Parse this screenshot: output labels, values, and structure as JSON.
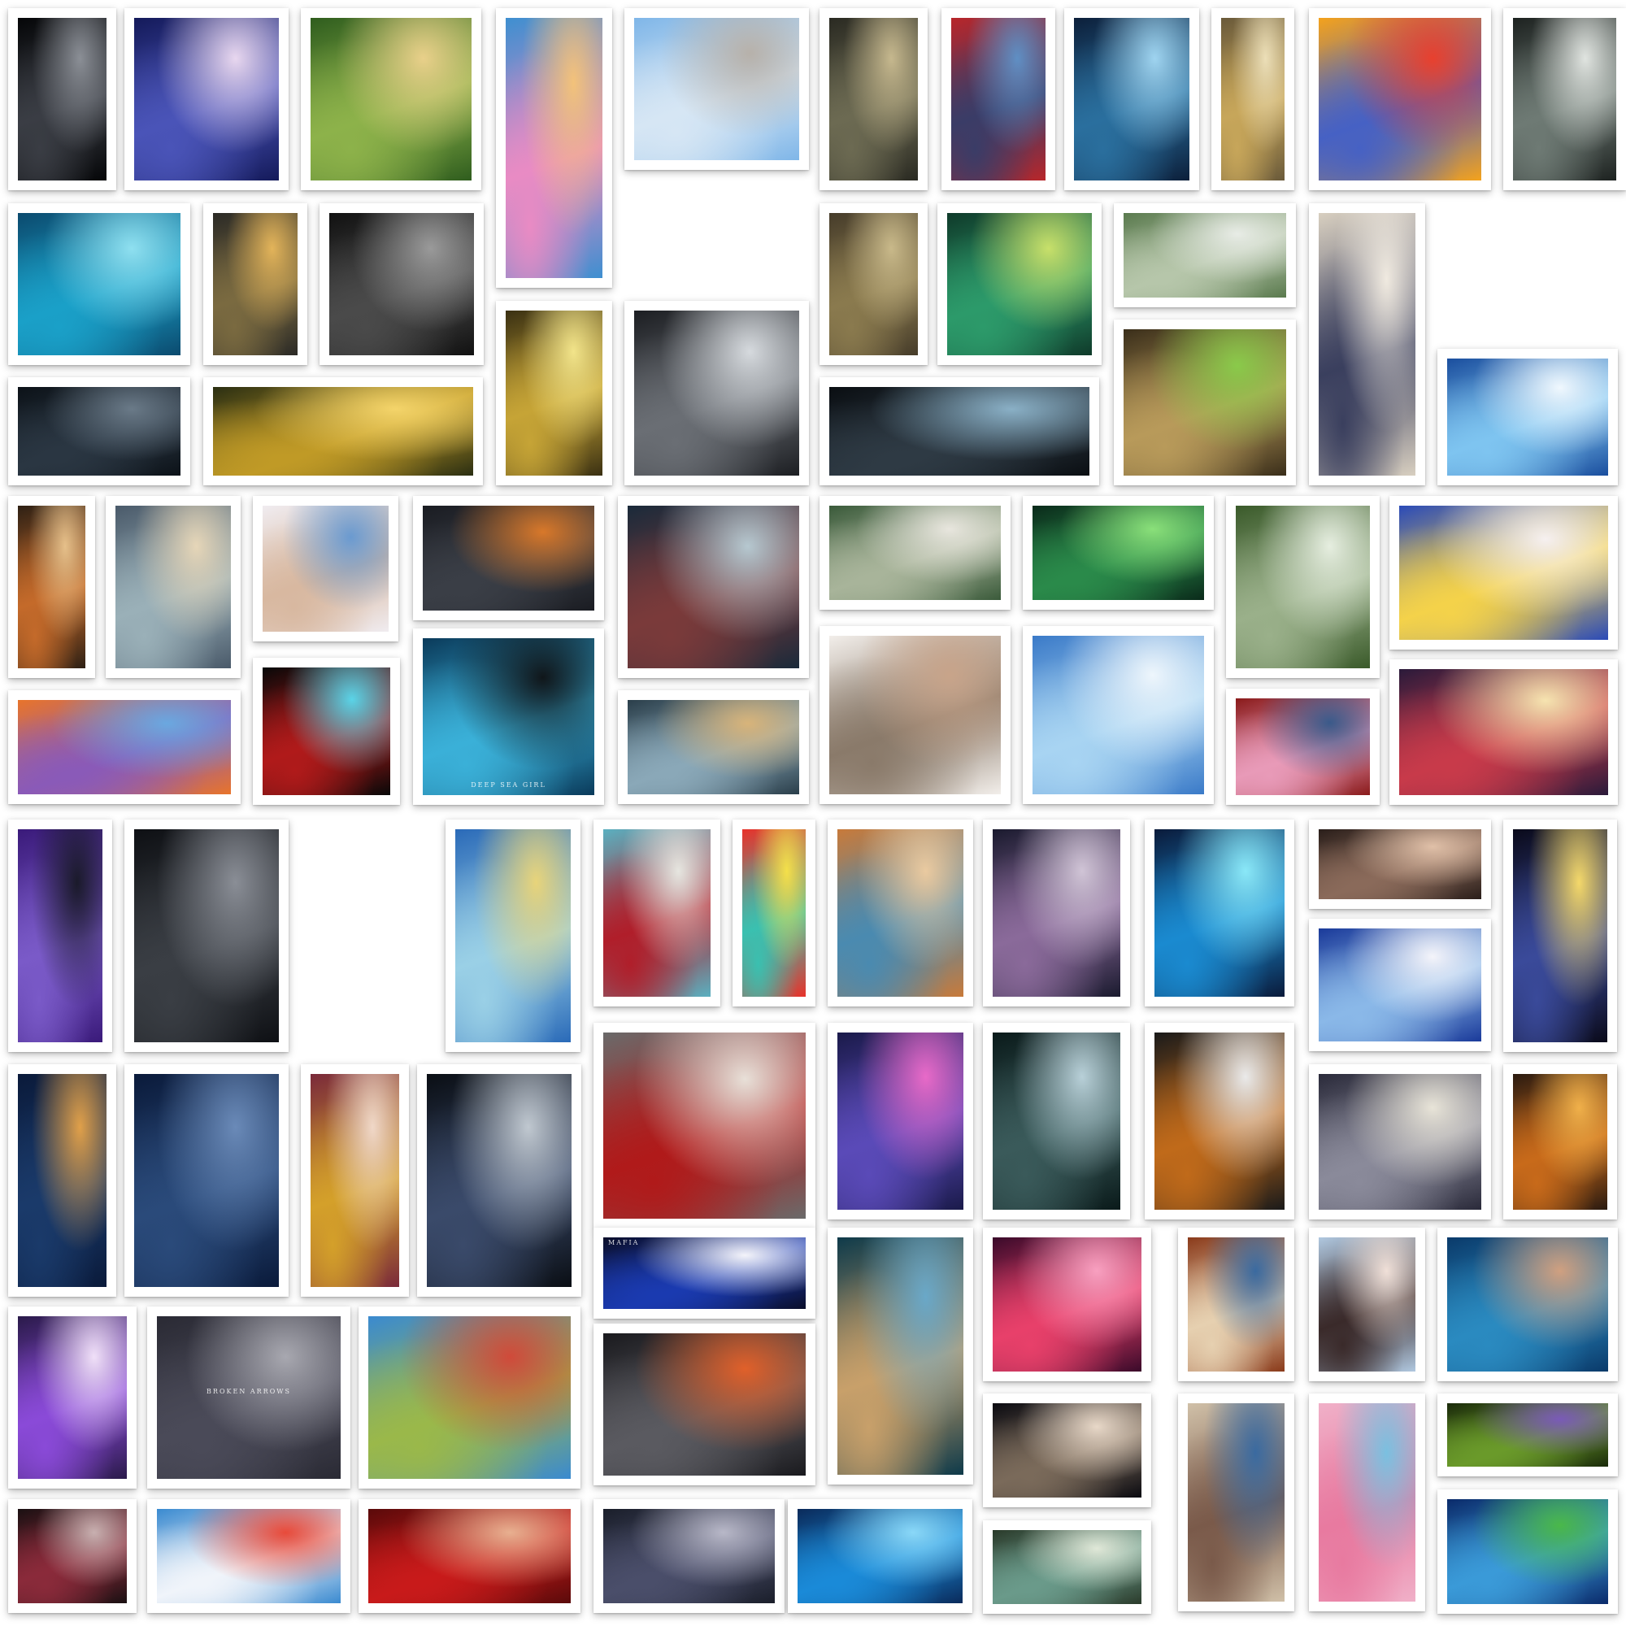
{
  "collage": {
    "background": "#ffffff",
    "frame_color": "#ffffff",
    "photos": [
      {
        "id": "p1",
        "colors": [
          "#050608",
          "#3a3d44",
          "#8b8f96"
        ],
        "caption": ""
      },
      {
        "id": "p2",
        "colors": [
          "#141a5a",
          "#4a54b8",
          "#e8d7ef"
        ],
        "caption": ""
      },
      {
        "id": "p3",
        "colors": [
          "#2f5d1e",
          "#8db24a",
          "#e9d08a"
        ],
        "caption": ""
      },
      {
        "id": "p4",
        "colors": [
          "#3e8fd0",
          "#e98bc4",
          "#f3c27a"
        ],
        "caption": ""
      },
      {
        "id": "p5",
        "colors": [
          "#7fb6e8",
          "#d6e6f4",
          "#b7b1aa"
        ],
        "caption": ""
      },
      {
        "id": "p6",
        "colors": [
          "#2a2a22",
          "#6c6a52",
          "#c6b88e"
        ],
        "caption": ""
      },
      {
        "id": "p7",
        "colors": [
          "#b8262a",
          "#3a3c67",
          "#5f8fc4"
        ],
        "caption": ""
      },
      {
        "id": "p8",
        "colors": [
          "#0c1f3a",
          "#2a6f9e",
          "#9fd4f0"
        ],
        "caption": ""
      },
      {
        "id": "p9",
        "colors": [
          "#6a5a3a",
          "#c7a65a",
          "#ecdfb8"
        ],
        "caption": ""
      },
      {
        "id": "p10",
        "colors": [
          "#f4a21c",
          "#4661c4",
          "#e8402e"
        ],
        "caption": ""
      },
      {
        "id": "p11",
        "colors": [
          "#1d2220",
          "#6e7a74",
          "#e0e4e0"
        ],
        "caption": ""
      },
      {
        "id": "p12",
        "colors": [
          "#0b4a6e",
          "#1aa0c8",
          "#8fe0f0"
        ],
        "caption": ""
      },
      {
        "id": "p13",
        "colors": [
          "#2b2a26",
          "#7a6a40",
          "#e3b45a"
        ],
        "caption": ""
      },
      {
        "id": "p14",
        "colors": [
          "#111111",
          "#4a4a4a",
          "#9a9a9a"
        ],
        "caption": ""
      },
      {
        "id": "p15",
        "colors": [
          "#463c2a",
          "#8a7a4e",
          "#c9b98a"
        ],
        "caption": ""
      },
      {
        "id": "p16",
        "colors": [
          "#0f3a2a",
          "#2c9a6a",
          "#c8e06a"
        ],
        "caption": ""
      },
      {
        "id": "p17",
        "colors": [
          "#5a7a4e",
          "#b6c6aa",
          "#e8ece6"
        ],
        "caption": ""
      },
      {
        "id": "p18",
        "colors": [
          "#d8cfc0",
          "#3a3f5e",
          "#f0eae0"
        ],
        "caption": ""
      },
      {
        "id": "p19",
        "colors": [
          "#0c1218",
          "#2a3642",
          "#6a7a88"
        ],
        "caption": ""
      },
      {
        "id": "p20",
        "colors": [
          "#2a2e12",
          "#c09a26",
          "#f4d46a"
        ],
        "caption": ""
      },
      {
        "id": "p21",
        "colors": [
          "#3a3012",
          "#c6a436",
          "#f2e48a"
        ],
        "caption": ""
      },
      {
        "id": "p22",
        "colors": [
          "#1c1e22",
          "#6a6e74",
          "#d6dade"
        ],
        "caption": ""
      },
      {
        "id": "p23",
        "colors": [
          "#0a0e12",
          "#2e3a44",
          "#8ab0c6"
        ],
        "caption": ""
      },
      {
        "id": "p24",
        "colors": [
          "#3a2e1a",
          "#b89a5a",
          "#8aca4a"
        ],
        "caption": ""
      },
      {
        "id": "p25",
        "colors": [
          "#1a4e9e",
          "#7ec4f0",
          "#f0f8fe"
        ],
        "caption": ""
      },
      {
        "id": "p26",
        "colors": [
          "#2e2014",
          "#c46a2a",
          "#e6c08a"
        ],
        "caption": ""
      },
      {
        "id": "p27",
        "colors": [
          "#4a5a6a",
          "#9ab0b8",
          "#e6d6b8"
        ],
        "caption": ""
      },
      {
        "id": "p28",
        "colors": [
          "#f0ecf0",
          "#d8b8a0",
          "#6a9ad0"
        ],
        "caption": ""
      },
      {
        "id": "p29",
        "colors": [
          "#1a1c22",
          "#3a3e46",
          "#d8782a"
        ],
        "caption": ""
      },
      {
        "id": "p30",
        "colors": [
          "#1a2a3a",
          "#7a3a3a",
          "#b6c8d0"
        ],
        "caption": ""
      },
      {
        "id": "p31",
        "colors": [
          "#3a5a3a",
          "#a8b49a",
          "#e8e6de"
        ],
        "caption": ""
      },
      {
        "id": "p32",
        "colors": [
          "#0a2a1a",
          "#2a8a4a",
          "#8ae07a"
        ],
        "caption": ""
      },
      {
        "id": "p33",
        "colors": [
          "#3a5a2a",
          "#9ab08a",
          "#e6eee0"
        ],
        "caption": ""
      },
      {
        "id": "p34",
        "colors": [
          "#2a4ab8",
          "#f4d24a",
          "#f6f0f0"
        ],
        "caption": ""
      },
      {
        "id": "p35",
        "colors": [
          "#e8742a",
          "#8a5ab8",
          "#6aa8e0"
        ],
        "caption": ""
      },
      {
        "id": "p36",
        "colors": [
          "#080808",
          "#b01a1a",
          "#5ad4e8"
        ],
        "caption": ""
      },
      {
        "id": "p37",
        "colors": [
          "#0a3a5a",
          "#3ab0d8",
          "#10161a"
        ],
        "caption": "DEEP SEA GIRL"
      },
      {
        "id": "p38",
        "colors": [
          "#2a3e4a",
          "#8aa8b8",
          "#d8b47a"
        ],
        "caption": ""
      },
      {
        "id": "p39",
        "colors": [
          "#f2eeea",
          "#8a7a6a",
          "#c8a48a"
        ],
        "caption": ""
      },
      {
        "id": "p40",
        "colors": [
          "#3a7ac8",
          "#a8d4f2",
          "#eef6fc"
        ],
        "caption": ""
      },
      {
        "id": "p41",
        "colors": [
          "#8a1a1a",
          "#e89ab8",
          "#3a5a8a"
        ],
        "caption": ""
      },
      {
        "id": "p42",
        "colors": [
          "#2a1a3a",
          "#c83a4a",
          "#f6e4b0"
        ],
        "caption": ""
      },
      {
        "id": "p43",
        "colors": [
          "#3a1a7a",
          "#7a5ac8",
          "#1a1a2a"
        ],
        "caption": ""
      },
      {
        "id": "p44",
        "colors": [
          "#0e1014",
          "#3a3e44",
          "#8a8e96"
        ],
        "caption": ""
      },
      {
        "id": "p45",
        "colors": [
          "#2a6ab8",
          "#9ad0e6",
          "#e8d47a"
        ],
        "caption": ""
      },
      {
        "id": "p46",
        "colors": [
          "#5ab0c0",
          "#b01e2a",
          "#e6e6e0"
        ],
        "caption": ""
      },
      {
        "id": "p47",
        "colors": [
          "#e8322a",
          "#3ac0b0",
          "#f4e04a"
        ],
        "caption": ""
      },
      {
        "id": "p48",
        "colors": [
          "#c87a3a",
          "#4a8ab0",
          "#eacaa0"
        ],
        "caption": ""
      },
      {
        "id": "p49",
        "colors": [
          "#1a1a2e",
          "#8a6a9a",
          "#d0c4d6"
        ],
        "caption": ""
      },
      {
        "id": "p50",
        "colors": [
          "#0a1a3a",
          "#1a8ad0",
          "#8ae8f8"
        ],
        "caption": ""
      },
      {
        "id": "p51",
        "colors": [
          "#2a1e1a",
          "#8a6a5a",
          "#e0c0a8"
        ],
        "caption": ""
      },
      {
        "id": "p52",
        "colors": [
          "#1a3a9a",
          "#8ab8e8",
          "#f4f4fa"
        ],
        "caption": ""
      },
      {
        "id": "p53",
        "colors": [
          "#0a0a1a",
          "#3a4a9a",
          "#f4d86a"
        ],
        "caption": ""
      },
      {
        "id": "p54",
        "colors": [
          "#0a1a3a",
          "#1a3a6a",
          "#e0a04a"
        ],
        "caption": ""
      },
      {
        "id": "p55",
        "colors": [
          "#0a1a3a",
          "#2a4a7a",
          "#6a8ab8"
        ],
        "caption": ""
      },
      {
        "id": "p56",
        "colors": [
          "#7a2a3a",
          "#d4a02a",
          "#f0d8c8"
        ],
        "caption": ""
      },
      {
        "id": "p57",
        "colors": [
          "#0a0e14",
          "#3a4a6a",
          "#c0c8d0"
        ],
        "caption": ""
      },
      {
        "id": "p58",
        "colors": [
          "#6a6a6a",
          "#b01a1a",
          "#e8e0d8"
        ],
        "caption": ""
      },
      {
        "id": "p59",
        "colors": [
          "#1a1a4a",
          "#5a4ab8",
          "#e86ac8"
        ],
        "caption": ""
      },
      {
        "id": "p60",
        "colors": [
          "#0a1a1a",
          "#3a5a5a",
          "#b8d0d8"
        ],
        "caption": ""
      },
      {
        "id": "p61",
        "colors": [
          "#1a1a1a",
          "#c06a1a",
          "#eaeaea"
        ],
        "caption": ""
      },
      {
        "id": "p62",
        "colors": [
          "#2a2a3a",
          "#8a8a9a",
          "#e8e4d8"
        ],
        "caption": ""
      },
      {
        "id": "p63",
        "colors": [
          "#2a1a10",
          "#c86a1a",
          "#f0b04a"
        ],
        "caption": ""
      },
      {
        "id": "p64",
        "colors": [
          "#0a0e2a",
          "#1a3ab0",
          "#f4f4fa"
        ],
        "caption": "MAFIA"
      },
      {
        "id": "p65",
        "colors": [
          "#0e3a4a",
          "#c8a06a",
          "#6aa8c8"
        ],
        "caption": ""
      },
      {
        "id": "p66",
        "colors": [
          "#3a0a2a",
          "#e8406a",
          "#f8a0c0"
        ],
        "caption": ""
      },
      {
        "id": "p67",
        "colors": [
          "#8a3a1a",
          "#e6d0b0",
          "#3a6aa0"
        ],
        "caption": ""
      },
      {
        "id": "p68",
        "colors": [
          "#b0c8e0",
          "#3a2a2a",
          "#f0e0d8"
        ],
        "caption": ""
      },
      {
        "id": "p69",
        "colors": [
          "#0a3a6a",
          "#2a8ac0",
          "#d0a080"
        ],
        "caption": ""
      },
      {
        "id": "p70",
        "colors": [
          "#2a1a4a",
          "#8a4ad8",
          "#f0e0f8"
        ],
        "caption": ""
      },
      {
        "id": "p71",
        "colors": [
          "#2a2a34",
          "#4a4a58",
          "#a8a8b0"
        ],
        "caption": "BROKEN ARROWS"
      },
      {
        "id": "p72",
        "colors": [
          "#3a8ad0",
          "#9ab84a",
          "#d04a3a"
        ],
        "caption": ""
      },
      {
        "id": "p73",
        "colors": [
          "#1a1a1e",
          "#5a5a60",
          "#e0602a"
        ],
        "caption": ""
      },
      {
        "id": "p74",
        "colors": [
          "#0a0a10",
          "#7a6a5a",
          "#e8d8c8"
        ],
        "caption": ""
      },
      {
        "id": "p75",
        "colors": [
          "#d0c0a8",
          "#7a5a4a",
          "#3a6aa0"
        ],
        "caption": ""
      },
      {
        "id": "p76",
        "colors": [
          "#f0b0c8",
          "#e87aa0",
          "#7ac0e0"
        ],
        "caption": ""
      },
      {
        "id": "p77",
        "colors": [
          "#1a2a0a",
          "#6a9a2a",
          "#7a5ab8"
        ],
        "caption": ""
      },
      {
        "id": "p78",
        "colors": [
          "#1a1012",
          "#8a2a3a",
          "#c8b0b0"
        ],
        "caption": ""
      },
      {
        "id": "p79",
        "colors": [
          "#3a8ad0",
          "#f0f4fa",
          "#e84a3a"
        ],
        "caption": ""
      },
      {
        "id": "p80",
        "colors": [
          "#5a0a0a",
          "#c81a1a",
          "#e8b090"
        ],
        "caption": ""
      },
      {
        "id": "p81",
        "colors": [
          "#1a1e2a",
          "#4a4e6a",
          "#b8b8c8"
        ],
        "caption": ""
      },
      {
        "id": "p82",
        "colors": [
          "#0a2a5a",
          "#1a8ad8",
          "#8ad8f8"
        ],
        "caption": ""
      },
      {
        "id": "p83",
        "colors": [
          "#2a3a2a",
          "#6a9a8a",
          "#e0e8d8"
        ],
        "caption": ""
      },
      {
        "id": "p84",
        "colors": [
          "#0a2a6a",
          "#3a9ad8",
          "#4ab84a"
        ],
        "caption": ""
      }
    ]
  }
}
